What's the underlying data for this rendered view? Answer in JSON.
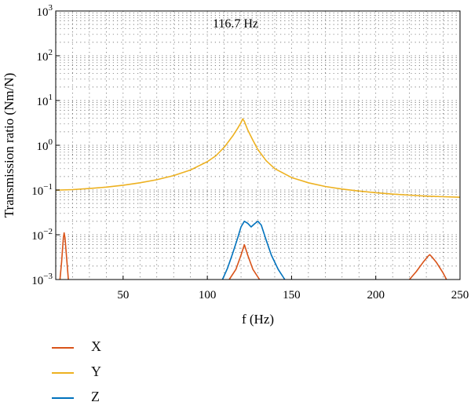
{
  "chart_data": {
    "type": "line",
    "xlabel": "f (Hz)",
    "ylabel": "Transmission ratio (Nm/N)",
    "annotation": "116.7 Hz",
    "xlim": [
      10,
      250
    ],
    "ylim": [
      0.001,
      1000
    ],
    "yscale": "log",
    "x_ticks": [
      50,
      100,
      150,
      200,
      250
    ],
    "y_ticks": [
      {
        "value": 0.001,
        "base": "10",
        "exp": "−3"
      },
      {
        "value": 0.01,
        "base": "10",
        "exp": "−2"
      },
      {
        "value": 0.1,
        "base": "10",
        "exp": "−1"
      },
      {
        "value": 1,
        "base": "10",
        "exp": "0"
      },
      {
        "value": 10,
        "base": "10",
        "exp": "1"
      },
      {
        "value": 100,
        "base": "10",
        "exp": "2"
      },
      {
        "value": 1000,
        "base": "10",
        "exp": "3"
      }
    ],
    "grid": true,
    "series": [
      {
        "name": "X",
        "color": "#d95319",
        "segments": [
          [
            [
              12.5,
              0.001
            ],
            [
              13.5,
              0.0025
            ],
            [
              14.5,
              0.0085
            ],
            [
              15.0,
              0.011
            ],
            [
              15.5,
              0.0085
            ],
            [
              16.5,
              0.003
            ],
            [
              17.5,
              0.001
            ]
          ],
          [
            [
              113,
              0.001
            ],
            [
              117,
              0.0017
            ],
            [
              120,
              0.0035
            ],
            [
              122,
              0.006
            ],
            [
              124,
              0.0035
            ],
            [
              127,
              0.0017
            ],
            [
              131,
              0.001
            ]
          ],
          [
            [
              220,
              0.001
            ],
            [
              224,
              0.0015
            ],
            [
              228,
              0.0024
            ],
            [
              231,
              0.0033
            ],
            [
              232,
              0.0036
            ],
            [
              233,
              0.0033
            ],
            [
              236,
              0.0024
            ],
            [
              240,
              0.0014
            ],
            [
              242,
              0.001
            ]
          ]
        ]
      },
      {
        "name": "Y",
        "color": "#edb120",
        "segments": [
          [
            [
              10,
              0.099
            ],
            [
              20,
              0.102
            ],
            [
              30,
              0.108
            ],
            [
              40,
              0.116
            ],
            [
              50,
              0.128
            ],
            [
              60,
              0.145
            ],
            [
              70,
              0.17
            ],
            [
              80,
              0.21
            ],
            [
              90,
              0.28
            ],
            [
              100,
              0.43
            ],
            [
              105,
              0.58
            ],
            [
              110,
              0.9
            ],
            [
              115,
              1.6
            ],
            [
              118,
              2.4
            ],
            [
              120,
              3.2
            ],
            [
              121,
              3.9
            ],
            [
              122,
              3.4
            ],
            [
              124,
              2.2
            ],
            [
              127,
              1.3
            ],
            [
              130,
              0.8
            ],
            [
              135,
              0.45
            ],
            [
              140,
              0.3
            ],
            [
              150,
              0.19
            ],
            [
              160,
              0.145
            ],
            [
              170,
              0.12
            ],
            [
              180,
              0.105
            ],
            [
              190,
              0.095
            ],
            [
              200,
              0.087
            ],
            [
              210,
              0.081
            ],
            [
              220,
              0.077
            ],
            [
              230,
              0.073
            ],
            [
              240,
              0.071
            ],
            [
              250,
              0.069
            ]
          ]
        ]
      },
      {
        "name": "Z",
        "color": "#0072bd",
        "segments": [
          [
            [
              109,
              0.001
            ],
            [
              112,
              0.0018
            ],
            [
              115,
              0.0038
            ],
            [
              118,
              0.0085
            ],
            [
              120,
              0.015
            ],
            [
              122,
              0.02
            ],
            [
              124,
              0.018
            ],
            [
              126,
              0.015
            ],
            [
              128,
              0.0175
            ],
            [
              130,
              0.02
            ],
            [
              132,
              0.0165
            ],
            [
              135,
              0.0075
            ],
            [
              138,
              0.0035
            ],
            [
              142,
              0.0017
            ],
            [
              146,
              0.001
            ]
          ]
        ]
      }
    ]
  },
  "legend": [
    {
      "label": "X",
      "color": "#d95319"
    },
    {
      "label": "Y",
      "color": "#edb120"
    },
    {
      "label": "Z",
      "color": "#0072bd"
    }
  ]
}
